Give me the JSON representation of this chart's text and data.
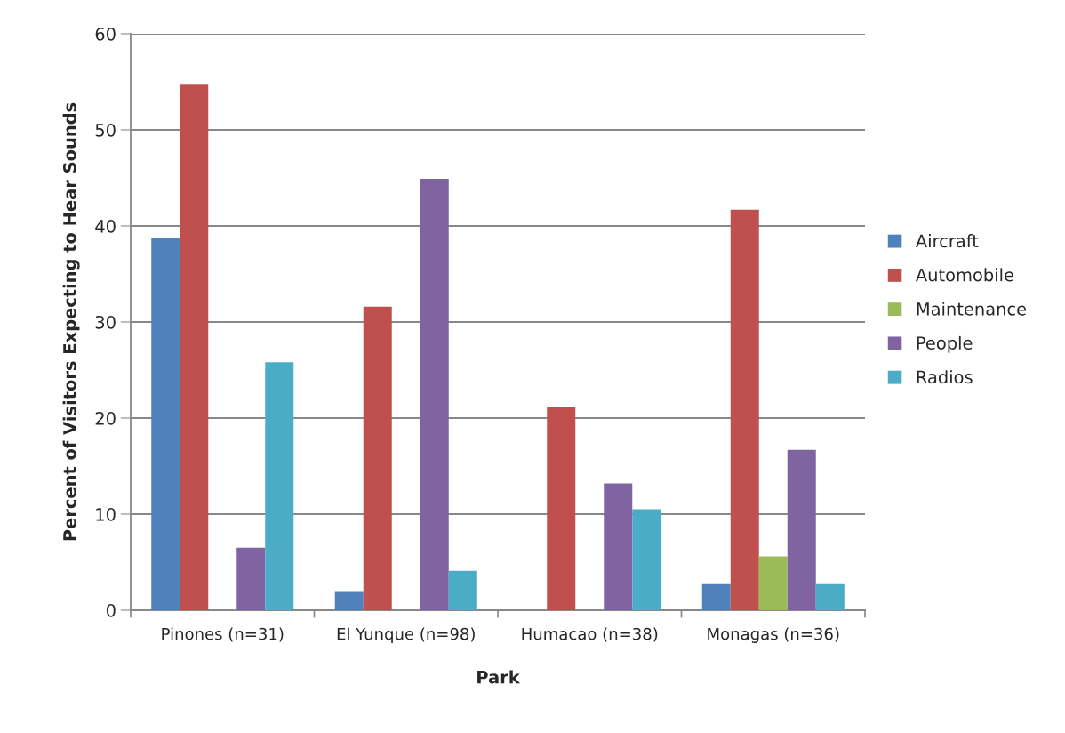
{
  "chart_data": {
    "type": "bar",
    "xlabel": "Park",
    "ylabel": "Percent of Visitors Expecting to Hear Sounds",
    "categories": [
      "Pinones (n=31)",
      "El Yunque (n=98)",
      "Humacao (n=38)",
      "Monagas (n=36)"
    ],
    "series": [
      {
        "name": "Aircraft",
        "color": "#4f81bd",
        "values": [
          38.7,
          2.0,
          0,
          2.8
        ]
      },
      {
        "name": "Automobile",
        "color": "#c0504d",
        "values": [
          54.8,
          31.6,
          21.1,
          41.7
        ]
      },
      {
        "name": "Maintenance",
        "color": "#9bbb59",
        "values": [
          0,
          0,
          0,
          5.6
        ]
      },
      {
        "name": "People",
        "color": "#8064a2",
        "values": [
          6.5,
          44.9,
          13.2,
          16.7
        ]
      },
      {
        "name": "Radios",
        "color": "#4bacc6",
        "values": [
          25.8,
          4.1,
          10.5,
          2.8
        ]
      }
    ],
    "ylim": [
      0,
      60
    ],
    "yticks": [
      0,
      10,
      20,
      30,
      40,
      50,
      60
    ],
    "grid": "y",
    "legend": "right"
  }
}
